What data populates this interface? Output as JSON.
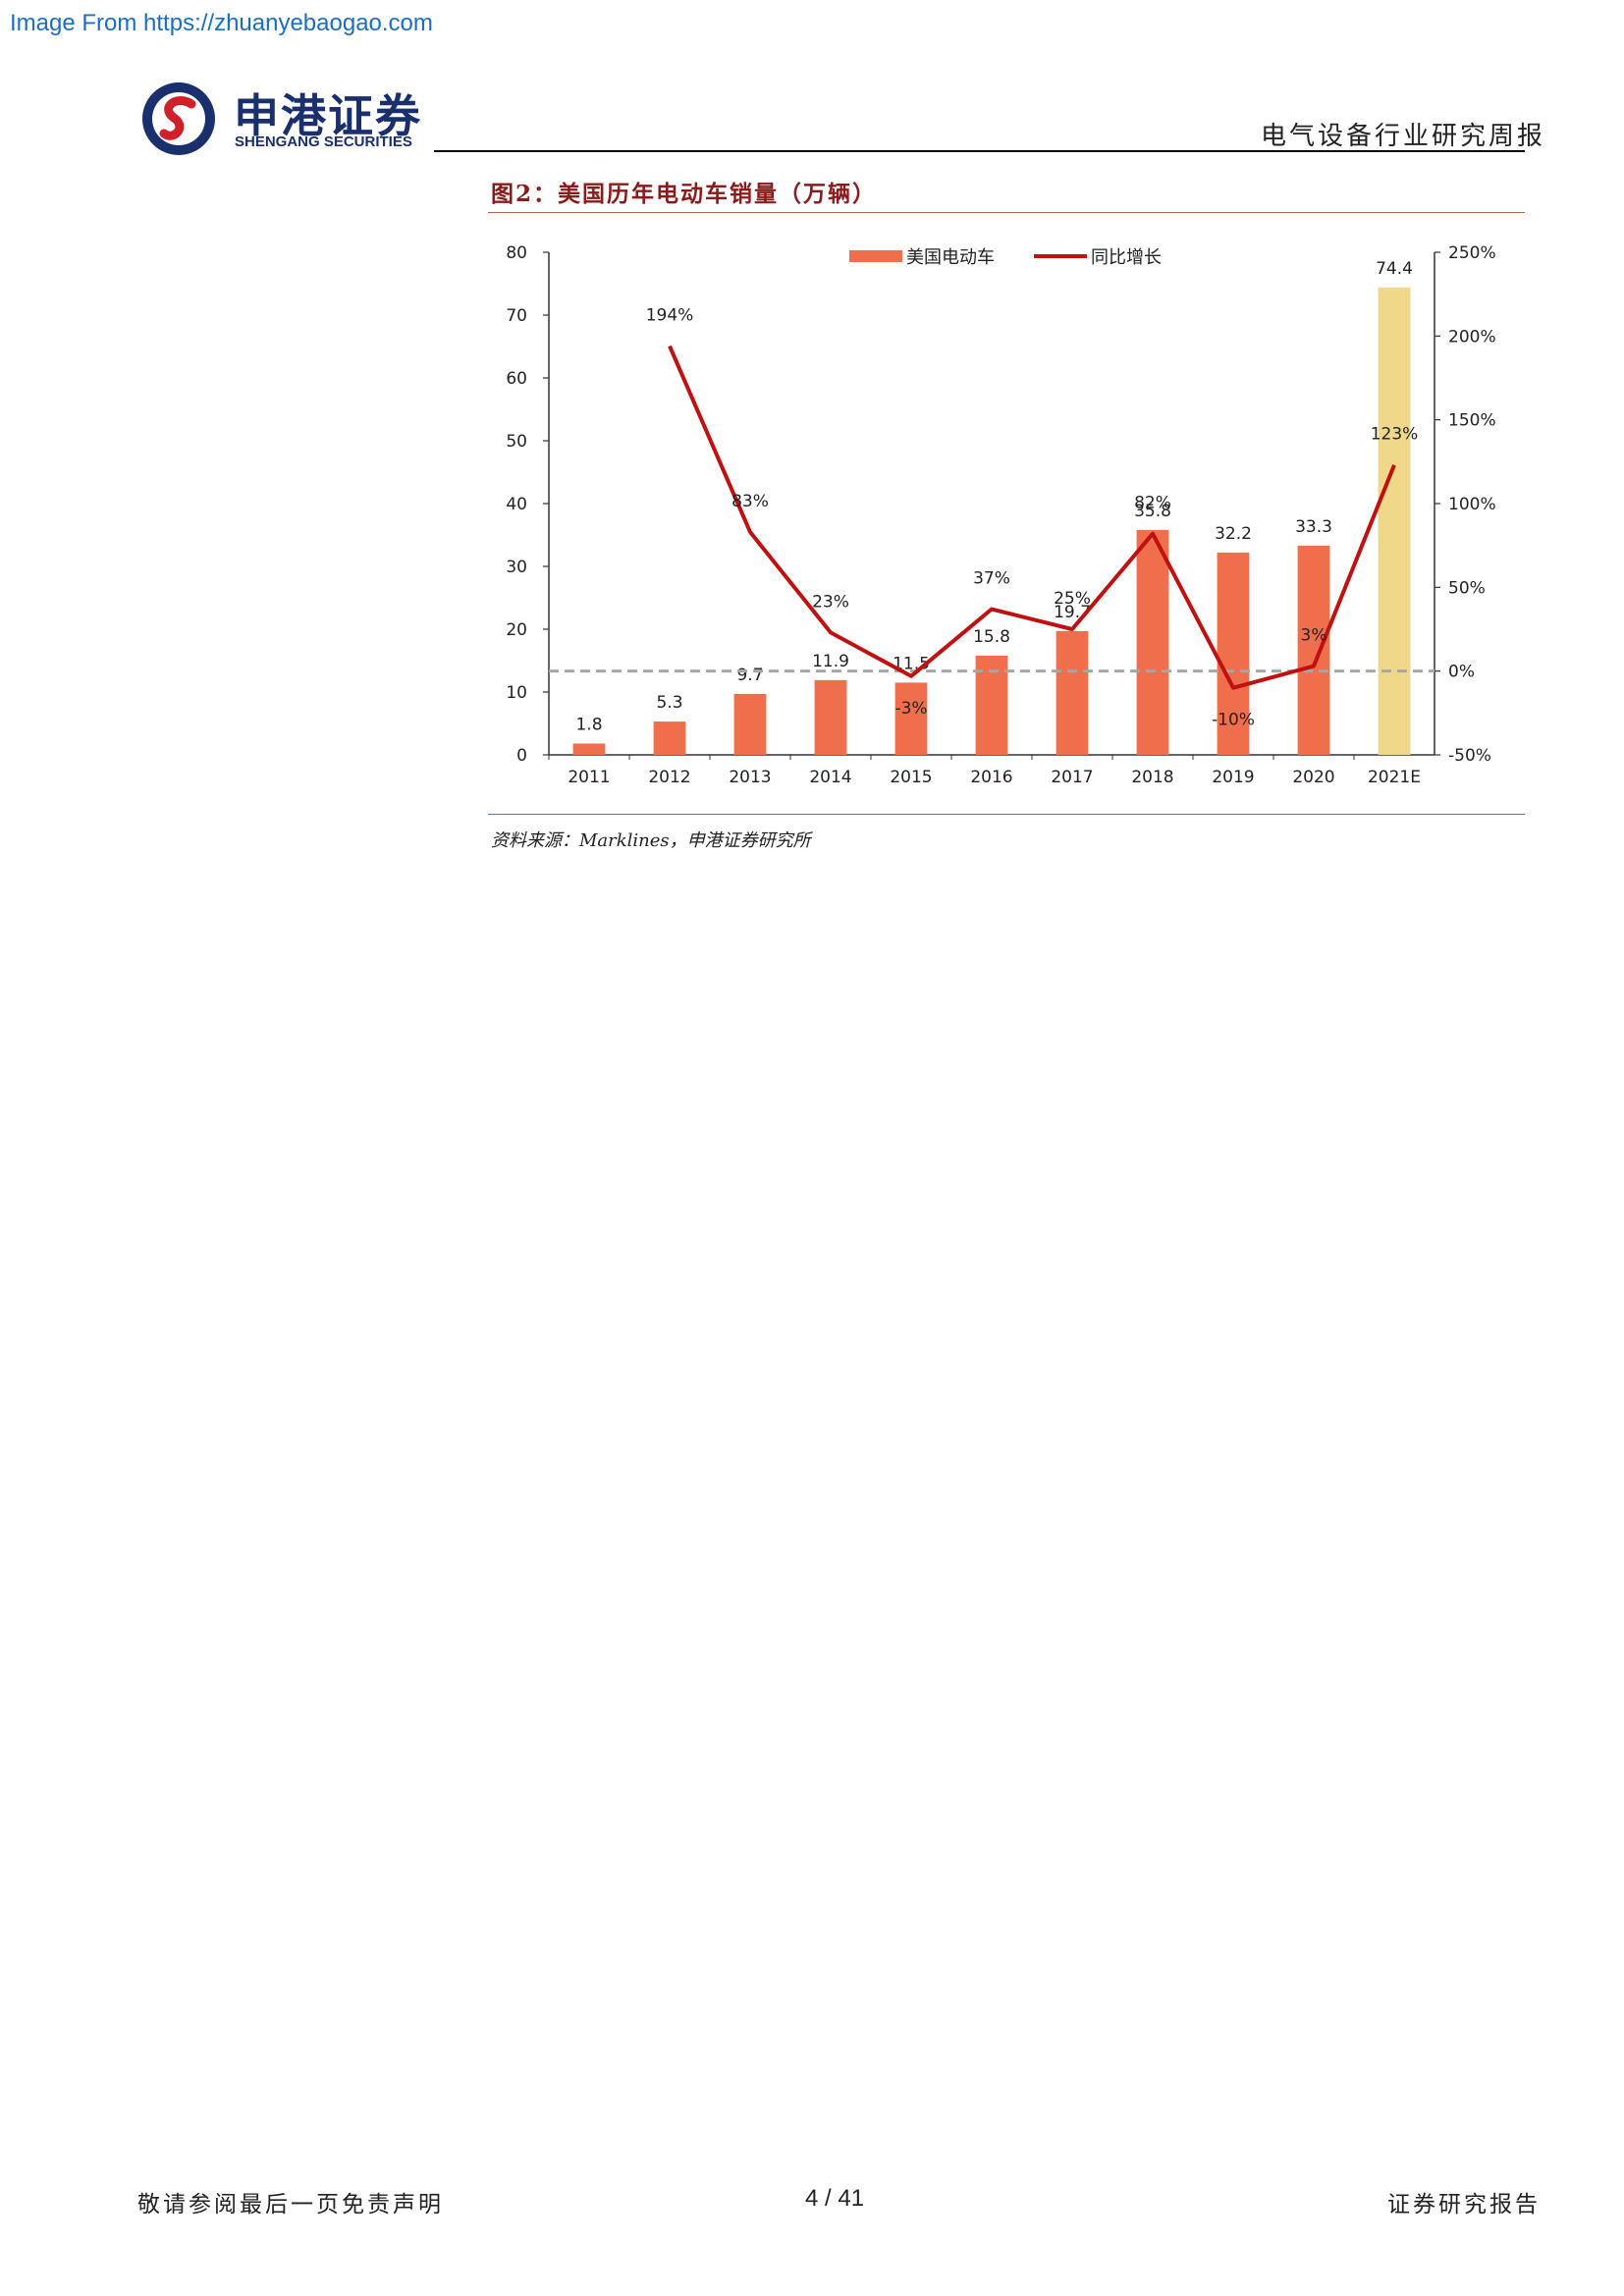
{
  "watermark": "Image From https://zhuanyebaogao.com",
  "logo": {
    "cn": "申港证券",
    "en": "SHENGANG SECURITIES"
  },
  "header": {
    "right": "电气设备行业研究周报"
  },
  "figure": {
    "title": "图2：美国历年电动车销量（万辆）",
    "source": "资料来源：Marklines，申港证券研究所"
  },
  "chart_data": {
    "type": "bar",
    "categories": [
      "2011",
      "2012",
      "2013",
      "2014",
      "2015",
      "2016",
      "2017",
      "2018",
      "2019",
      "2020",
      "2021E"
    ],
    "series": [
      {
        "name": "美国电动车",
        "type": "bar",
        "axis": "left",
        "values": [
          1.8,
          5.3,
          9.7,
          11.9,
          11.5,
          15.8,
          19.7,
          35.8,
          32.2,
          33.3,
          74.4
        ],
        "labels": [
          "1.8",
          "5.3",
          "9.7",
          "11.9",
          "11.5",
          "15.8",
          "19.7",
          "35.8",
          "32.2",
          "33.3",
          "74.4"
        ]
      },
      {
        "name": "同比增长",
        "type": "line",
        "axis": "right",
        "values": [
          null,
          194,
          83,
          23,
          -3,
          37,
          25,
          82,
          -10,
          3,
          123
        ],
        "labels": [
          "",
          "194%",
          "83%",
          "23%",
          "-3%",
          "37%",
          "25%",
          "82%",
          "-10%",
          "3%",
          "123%"
        ]
      }
    ],
    "left_axis": {
      "ylim": [
        0,
        80
      ],
      "ticks": [
        "0",
        "10",
        "20",
        "30",
        "40",
        "50",
        "60",
        "70",
        "80"
      ]
    },
    "right_axis": {
      "ylim": [
        -50,
        250
      ],
      "ticks": [
        "-50%",
        "0%",
        "50%",
        "100%",
        "150%",
        "200%",
        "250%"
      ]
    },
    "zero_line": "dashed",
    "legend": "top-center",
    "colors": {
      "bar": "#ef6f4c",
      "bar_forecast": "#f0d88a",
      "line": "#c01010",
      "zero_line": "#a6a6a6"
    }
  },
  "footer": {
    "left": "敬请参阅最后一页免责声明",
    "center": "4 / 41",
    "right": "证券研究报告"
  }
}
